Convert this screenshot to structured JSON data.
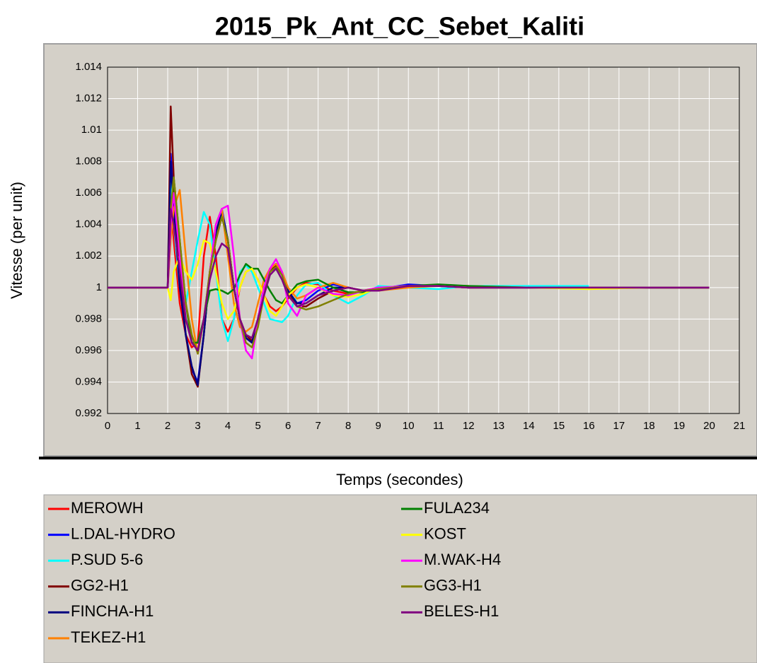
{
  "chart_data": {
    "type": "line",
    "title": "2015_Pk_Ant_CC_Sebet_Kaliti",
    "x_label": "Temps (secondes)",
    "y_label": "Vitesse (per unit)",
    "xlim": [
      0,
      21
    ],
    "ylim": [
      0.992,
      1.014
    ],
    "xticks": [
      0,
      1,
      2,
      3,
      4,
      5,
      6,
      7,
      8,
      9,
      10,
      11,
      12,
      13,
      14,
      15,
      16,
      17,
      18,
      19,
      20,
      21
    ],
    "yticks": [
      0.992,
      0.994,
      0.996,
      0.998,
      1,
      1.002,
      1.004,
      1.006,
      1.008,
      1.01,
      1.012,
      1.014
    ],
    "grid": true,
    "legend": "bottom",
    "x": [
      0,
      1,
      2,
      2.1,
      2.2,
      2.4,
      2.6,
      2.8,
      3,
      3.2,
      3.4,
      3.6,
      3.8,
      4,
      4.2,
      4.4,
      4.6,
      4.8,
      5,
      5.2,
      5.4,
      5.6,
      5.8,
      6,
      6.3,
      6.6,
      7,
      7.5,
      8,
      8.5,
      9,
      10,
      11,
      12,
      14,
      16,
      18,
      20
    ],
    "series": [
      {
        "name": "MEROWH",
        "color": "#ff0000",
        "values": [
          1,
          1,
          1,
          1.006,
          1.003,
          0.999,
          0.997,
          0.9962,
          0.9965,
          1.002,
          1.0045,
          1.002,
          0.998,
          0.9972,
          0.998,
          1.0,
          1.001,
          1.0012,
          1.0005,
          0.9995,
          0.9988,
          0.9985,
          0.9988,
          0.9993,
          1.0,
          1.0003,
          1.0002,
          0.9998,
          0.9996,
          0.9998,
          1.0,
          1.0001,
          1.0001,
          1.0001,
          1.0,
          1.0,
          1.0,
          1.0
        ]
      },
      {
        "name": "L.DAL-HYDRO",
        "color": "#0000ff",
        "values": [
          1,
          1,
          1,
          1.0085,
          1.006,
          1.001,
          0.997,
          0.9948,
          0.994,
          0.997,
          1.001,
          1.004,
          1.005,
          1.003,
          1.0,
          0.998,
          0.9968,
          0.9965,
          0.998,
          0.9998,
          1.0012,
          1.0015,
          1.0008,
          0.9998,
          0.999,
          0.9992,
          0.9998,
          1.0002,
          1.0,
          0.9998,
          0.9999,
          1.0002,
          1.0001,
          1.0,
          1.0,
          1.0,
          1.0,
          1.0
        ]
      },
      {
        "name": "P.SUD 5-6",
        "color": "#00ffff",
        "values": [
          1,
          1,
          1,
          1.007,
          1.004,
          1.0,
          0.999,
          1.001,
          1.003,
          1.0048,
          1.004,
          1.001,
          0.998,
          0.9966,
          0.998,
          1.001,
          1.0014,
          1.001,
          1.0,
          0.999,
          0.998,
          0.9979,
          0.9978,
          0.9982,
          0.9995,
          1.0002,
          1.0003,
          0.9995,
          0.999,
          0.9995,
          1.0001,
          1.0,
          0.9999,
          1.0001,
          1.0001,
          1.0001,
          null,
          null
        ]
      },
      {
        "name": "GG2-H1",
        "color": "#800000",
        "values": [
          1,
          1,
          1,
          1.0115,
          1.007,
          1.001,
          0.997,
          0.9945,
          0.9937,
          0.997,
          1.001,
          1.003,
          1.0045,
          1.003,
          1.0,
          0.998,
          0.997,
          0.9966,
          0.998,
          1.0,
          1.001,
          1.0014,
          1.0008,
          0.9998,
          0.9988,
          0.9988,
          0.9993,
          0.9998,
          1.0,
          0.9998,
          0.9998,
          1.0001,
          1.0001,
          1.0,
          1.0,
          1.0,
          1.0,
          1.0
        ]
      },
      {
        "name": "FINCHA-H1",
        "color": "#000080",
        "values": [
          1,
          1,
          1,
          1.008,
          1.005,
          1.0,
          0.997,
          0.995,
          0.9938,
          0.997,
          1.001,
          1.0035,
          1.0048,
          1.003,
          1.0,
          0.998,
          0.9968,
          0.9965,
          0.998,
          1.0,
          1.0012,
          1.0015,
          1.0008,
          0.9998,
          0.999,
          0.999,
          0.9995,
          1.0,
          1.0,
          0.9998,
          0.9999,
          1.0001,
          1.0001,
          1.0,
          1.0,
          1.0,
          1.0,
          1.0
        ]
      },
      {
        "name": "TEKEZ-H1",
        "color": "#ff8000",
        "values": [
          1,
          1,
          1,
          1.003,
          1.005,
          1.0062,
          1.002,
          0.998,
          0.9958,
          0.998,
          1.001,
          1.004,
          1.005,
          1.002,
          0.999,
          0.9975,
          0.9972,
          0.9975,
          0.999,
          1.0005,
          1.0012,
          1.0015,
          1.001,
          1.0,
          0.9993,
          0.9995,
          1.0,
          1.0003,
          1.0,
          0.9998,
          0.9998,
          1.0,
          1.0001,
          1.0001,
          1.0,
          1.0,
          1.0,
          1.0
        ]
      },
      {
        "name": "FULA234",
        "color": "#008000",
        "values": [
          1,
          1,
          1,
          1.004,
          1.007,
          1.003,
          0.999,
          0.9965,
          0.9965,
          0.998,
          0.9998,
          0.9999,
          0.9998,
          0.9996,
          0.9999,
          1.0008,
          1.0015,
          1.0012,
          1.0012,
          1.0005,
          0.9998,
          0.9992,
          0.999,
          0.9995,
          1.0002,
          1.0004,
          1.0005,
          1.0,
          0.9997,
          0.9997,
          0.9999,
          1.0001,
          1.0002,
          1.0001,
          1.0,
          1.0,
          1.0,
          1.0
        ]
      },
      {
        "name": "KOST",
        "color": "#ffff00",
        "values": [
          1,
          1,
          1,
          0.9992,
          1.001,
          1.002,
          1.001,
          1.0005,
          1.0015,
          1.003,
          1.0028,
          1.001,
          0.999,
          0.998,
          0.9985,
          1.0,
          1.001,
          1.0012,
          1.0005,
          0.9995,
          0.9985,
          0.9982,
          0.9988,
          0.9995,
          1.0,
          1.0002,
          1.0,
          0.9995,
          0.9994,
          0.9996,
          1.0,
          1.0001,
          1.0001,
          1.0,
          1.0,
          0.9999,
          1.0,
          1.0
        ]
      },
      {
        "name": "M.WAK-H4",
        "color": "#ff00ff",
        "values": [
          1,
          1,
          1,
          1.004,
          1.006,
          1.002,
          0.998,
          0.9965,
          0.996,
          0.998,
          1.001,
          1.004,
          1.005,
          1.0052,
          1.002,
          0.998,
          0.996,
          0.9955,
          0.998,
          1.0,
          1.0012,
          1.0018,
          1.001,
          0.999,
          0.9982,
          0.9995,
          1.0,
          0.9996,
          0.9995,
          0.9998,
          1.0,
          1.0001,
          1.0001,
          1.0,
          1.0,
          1.0,
          1.0,
          1.0
        ]
      },
      {
        "name": "GG3-H1",
        "color": "#808000",
        "values": [
          1,
          1,
          1,
          1.005,
          1.007,
          1.003,
          0.999,
          0.997,
          0.9958,
          0.998,
          1.001,
          1.003,
          1.0045,
          1.003,
          1.0,
          0.998,
          0.9965,
          0.9962,
          0.9975,
          0.9995,
          1.001,
          1.0013,
          1.0008,
          0.9995,
          0.9988,
          0.9986,
          0.9988,
          0.9992,
          0.9996,
          0.9998,
          0.9999,
          1.0001,
          1.0001,
          1.0,
          1.0,
          1.0,
          1.0,
          1.0
        ]
      },
      {
        "name": "BELES-H1",
        "color": "#800080",
        "values": [
          1,
          1,
          1,
          1.005,
          1.004,
          1.001,
          0.998,
          0.9965,
          0.996,
          0.998,
          1.0005,
          1.002,
          1.0028,
          1.0025,
          1.0,
          0.998,
          0.997,
          0.9968,
          0.998,
          0.9995,
          1.0008,
          1.0012,
          1.0005,
          0.9995,
          0.9988,
          0.999,
          0.9995,
          0.9998,
          1.0,
          0.9998,
          0.9998,
          1.0001,
          1.0001,
          1.0,
          1.0,
          1.0,
          1.0,
          1.0
        ]
      }
    ]
  }
}
